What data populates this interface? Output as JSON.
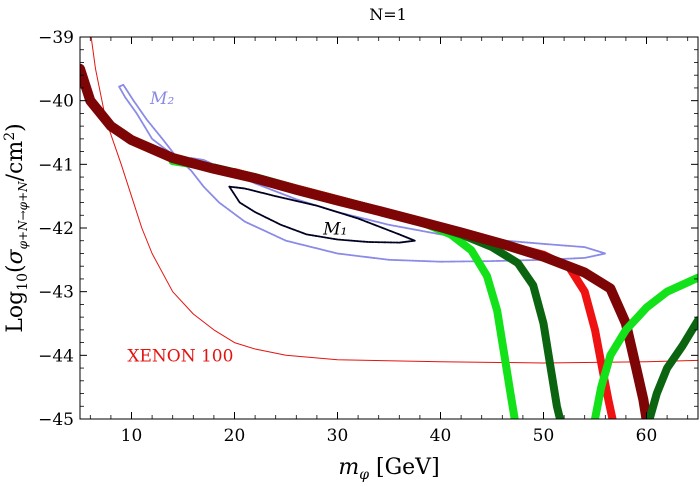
{
  "chart_data": {
    "type": "line",
    "title": "N=1",
    "xlabel": "m_φ [GeV]",
    "ylabel": "Log10(σ_{φ+N→φ+N}/cm²)",
    "xlim": [
      5,
      65
    ],
    "ylim": [
      -45,
      -39
    ],
    "x_ticks": [
      10,
      20,
      30,
      40,
      50,
      60
    ],
    "y_ticks": [
      -45,
      -44,
      -43,
      -42,
      -41,
      -40,
      -39
    ],
    "y_tick_labels": [
      "−45",
      "−44",
      "−43",
      "−42",
      "−41",
      "−40",
      "−39"
    ],
    "annotations": [
      {
        "text": "M₂",
        "x": 11.8,
        "y": -40.05,
        "color": "#8a8ae8"
      },
      {
        "text": "M₁",
        "x": 28.6,
        "y": -42.1,
        "color": "#000000"
      },
      {
        "text": "XENON 100",
        "x": 9.6,
        "y": -44.1,
        "color": "#e3140f"
      }
    ],
    "series": [
      {
        "name": "XENON 100",
        "color": "#e3140f",
        "points": [
          [
            6.0,
            -38.9
          ],
          [
            6.5,
            -39.5
          ],
          [
            7.5,
            -40.3
          ],
          [
            9,
            -41.0
          ],
          [
            10,
            -41.5
          ],
          [
            11,
            -42.0
          ],
          [
            12,
            -42.4
          ],
          [
            14,
            -43.0
          ],
          [
            16,
            -43.35
          ],
          [
            18,
            -43.6
          ],
          [
            20,
            -43.8
          ],
          [
            22,
            -43.9
          ],
          [
            25,
            -44.0
          ],
          [
            30,
            -44.07
          ],
          [
            40,
            -44.1
          ],
          [
            50,
            -44.12
          ],
          [
            60,
            -44.1
          ],
          [
            65,
            -44.08
          ]
        ]
      },
      {
        "name": "M2 region",
        "color": "#8a8ae8",
        "points": [
          [
            8.8,
            -39.78
          ],
          [
            9.2,
            -39.75
          ],
          [
            10.2,
            -40.0
          ],
          [
            11.5,
            -40.3
          ],
          [
            13,
            -40.6
          ],
          [
            14.2,
            -40.85
          ],
          [
            15,
            -41.0
          ],
          [
            15.8,
            -40.9
          ],
          [
            17,
            -40.93
          ],
          [
            19,
            -41.08
          ],
          [
            22,
            -41.3
          ],
          [
            26,
            -41.55
          ],
          [
            30,
            -41.75
          ],
          [
            35,
            -41.95
          ],
          [
            40,
            -42.1
          ],
          [
            45,
            -42.18
          ],
          [
            50,
            -42.25
          ],
          [
            54,
            -42.3
          ],
          [
            56,
            -42.4
          ],
          [
            54,
            -42.47
          ],
          [
            50,
            -42.5
          ],
          [
            45,
            -42.52
          ],
          [
            40,
            -42.53
          ],
          [
            35,
            -42.5
          ],
          [
            30,
            -42.4
          ],
          [
            25,
            -42.2
          ],
          [
            21,
            -41.9
          ],
          [
            18.5,
            -41.6
          ],
          [
            17,
            -41.35
          ],
          [
            15.8,
            -41.1
          ],
          [
            14.5,
            -40.9
          ],
          [
            13.2,
            -40.75
          ],
          [
            12,
            -40.6
          ],
          [
            10.5,
            -40.2
          ],
          [
            9.4,
            -39.95
          ],
          [
            8.8,
            -39.78
          ]
        ]
      },
      {
        "name": "M1 region",
        "color": "#000022",
        "points": [
          [
            19.5,
            -41.35
          ],
          [
            20.5,
            -41.6
          ],
          [
            22,
            -41.75
          ],
          [
            24.5,
            -41.95
          ],
          [
            27,
            -42.1
          ],
          [
            30,
            -42.18
          ],
          [
            33,
            -42.22
          ],
          [
            36,
            -42.23
          ],
          [
            37.5,
            -42.2
          ],
          [
            36,
            -42.1
          ],
          [
            32,
            -41.85
          ],
          [
            28,
            -41.65
          ],
          [
            24,
            -41.5
          ],
          [
            21,
            -41.38
          ],
          [
            19.5,
            -41.35
          ]
        ]
      },
      {
        "name": "light green band",
        "color": "#13e21b",
        "width": 8,
        "points": [
          [
            14,
            -40.95
          ],
          [
            18,
            -41.05
          ],
          [
            22,
            -41.2
          ],
          [
            26,
            -41.38
          ],
          [
            30,
            -41.55
          ],
          [
            34,
            -41.72
          ],
          [
            38,
            -41.9
          ],
          [
            41,
            -42.1
          ],
          [
            43,
            -42.35
          ],
          [
            44.5,
            -42.75
          ],
          [
            45.5,
            -43.3
          ],
          [
            46.2,
            -44.0
          ],
          [
            46.8,
            -44.6
          ],
          [
            47.2,
            -45.0
          ]
        ]
      },
      {
        "name": "dark green band",
        "color": "#0b6410",
        "width": 8,
        "points": [
          [
            18,
            -41.05
          ],
          [
            22,
            -41.2
          ],
          [
            26,
            -41.38
          ],
          [
            30,
            -41.55
          ],
          [
            34,
            -41.72
          ],
          [
            38,
            -41.9
          ],
          [
            42,
            -42.1
          ],
          [
            45,
            -42.3
          ],
          [
            47.5,
            -42.55
          ],
          [
            49,
            -42.9
          ],
          [
            50,
            -43.5
          ],
          [
            50.7,
            -44.2
          ],
          [
            51.3,
            -44.8
          ],
          [
            51.6,
            -45.0
          ]
        ]
      },
      {
        "name": "red band",
        "color": "#ee1212",
        "width": 8,
        "points": [
          [
            20,
            -41.12
          ],
          [
            26,
            -41.38
          ],
          [
            30,
            -41.55
          ],
          [
            34,
            -41.72
          ],
          [
            38,
            -41.9
          ],
          [
            42,
            -42.08
          ],
          [
            46,
            -42.25
          ],
          [
            50,
            -42.42
          ],
          [
            52.5,
            -42.62
          ],
          [
            54,
            -43.0
          ],
          [
            55,
            -43.6
          ],
          [
            55.7,
            -44.2
          ],
          [
            56.3,
            -44.7
          ],
          [
            56.7,
            -45.0
          ]
        ]
      },
      {
        "name": "dark red band",
        "color": "#7d0505",
        "width": 10,
        "points": [
          [
            5.0,
            -39.5
          ],
          [
            6,
            -40.0
          ],
          [
            8,
            -40.4
          ],
          [
            10,
            -40.62
          ],
          [
            14,
            -40.9
          ],
          [
            18,
            -41.07
          ],
          [
            22,
            -41.22
          ],
          [
            26,
            -41.4
          ],
          [
            30,
            -41.57
          ],
          [
            34,
            -41.73
          ],
          [
            38,
            -41.9
          ],
          [
            42,
            -42.07
          ],
          [
            46,
            -42.25
          ],
          [
            50,
            -42.45
          ],
          [
            54,
            -42.7
          ],
          [
            56.5,
            -42.95
          ],
          [
            58,
            -43.5
          ],
          [
            59,
            -44.2
          ],
          [
            59.7,
            -44.7
          ],
          [
            60,
            -45.0
          ]
        ]
      },
      {
        "name": "light green rising",
        "color": "#13e21b",
        "width": 8,
        "points": [
          [
            55,
            -45.0
          ],
          [
            55.6,
            -44.5
          ],
          [
            56.5,
            -44.0
          ],
          [
            58,
            -43.6
          ],
          [
            60,
            -43.25
          ],
          [
            62,
            -43.0
          ],
          [
            65,
            -42.78
          ]
        ]
      },
      {
        "name": "dark green rising",
        "color": "#0b6410",
        "width": 8,
        "points": [
          [
            60.3,
            -45.0
          ],
          [
            61,
            -44.6
          ],
          [
            62,
            -44.2
          ],
          [
            63.5,
            -43.85
          ],
          [
            65,
            -43.45
          ]
        ]
      }
    ]
  }
}
